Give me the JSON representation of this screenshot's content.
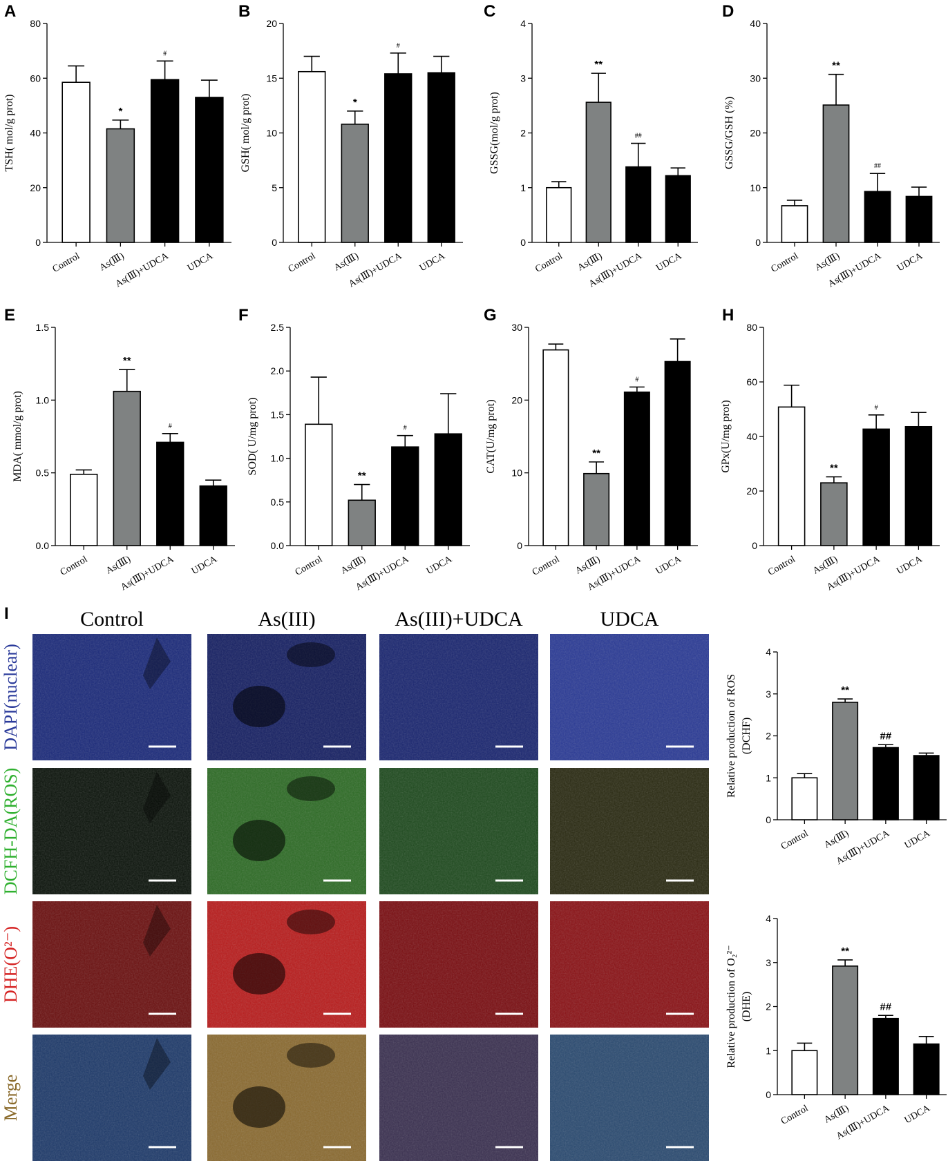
{
  "colors": {
    "control": "#ffffff",
    "arsenic": "#7f8282",
    "combo": "#000000",
    "udca": "#000000",
    "dapi": "#2a3a9a",
    "dcfh": "#2fb02f",
    "dhe": "#d52222",
    "merge": "#8a6a2a"
  },
  "chart_data": [
    {
      "id": "A",
      "type": "bar",
      "ylabel": "TSH( mol/g prot)",
      "ylim": [
        0,
        80
      ],
      "yticks": [
        0,
        20,
        40,
        60,
        80
      ],
      "categories": [
        "Control",
        "As(Ⅲ)",
        "As(Ⅲ)+UDCA",
        "UDCA"
      ],
      "values": [
        58.5,
        41.5,
        59.5,
        53
      ],
      "errors": [
        6,
        3.2,
        6.8,
        6.3
      ],
      "sig": [
        "",
        "*",
        "#",
        ""
      ]
    },
    {
      "id": "B",
      "type": "bar",
      "ylabel": "GSH( mol/g prot)",
      "ylim": [
        0,
        20
      ],
      "yticks": [
        0,
        5,
        10,
        15,
        20
      ],
      "categories": [
        "Control",
        "As(Ⅲ)",
        "As(Ⅲ)+UDCA",
        "UDCA"
      ],
      "values": [
        15.6,
        10.8,
        15.4,
        15.5
      ],
      "errors": [
        1.4,
        1.2,
        1.9,
        1.5
      ],
      "sig": [
        "",
        "*",
        "#",
        ""
      ]
    },
    {
      "id": "C",
      "type": "bar",
      "ylabel": "GSSG(mol/g prot)",
      "ylim": [
        0,
        4
      ],
      "yticks": [
        0,
        1,
        2,
        3,
        4
      ],
      "categories": [
        "Control",
        "As(Ⅲ)",
        "As(Ⅲ)+UDCA",
        "UDCA"
      ],
      "values": [
        1.0,
        2.56,
        1.38,
        1.22
      ],
      "errors": [
        0.11,
        0.53,
        0.43,
        0.14
      ],
      "sig": [
        "",
        "**",
        "##",
        ""
      ]
    },
    {
      "id": "D",
      "type": "bar",
      "ylabel": "GSSG/GSH (%)",
      "ylim": [
        0,
        40
      ],
      "yticks": [
        0,
        10,
        20,
        30,
        40
      ],
      "categories": [
        "Control",
        "As(Ⅲ)",
        "As(Ⅲ)+UDCA",
        "UDCA"
      ],
      "values": [
        6.7,
        25.1,
        9.3,
        8.4
      ],
      "errors": [
        1,
        5.6,
        3.3,
        1.7
      ],
      "sig": [
        "",
        "**",
        "##",
        ""
      ]
    },
    {
      "id": "E",
      "type": "bar",
      "ylabel": "MDA( mmol/g prot)",
      "ylim": [
        0,
        1.5
      ],
      "yticks": [
        "0.0",
        "0.5",
        "1.0",
        "1.5"
      ],
      "categories": [
        "Control",
        "As(Ⅲ)",
        "As(Ⅲ)+UDCA",
        "UDCA"
      ],
      "values": [
        0.49,
        1.06,
        0.71,
        0.41
      ],
      "errors": [
        0.03,
        0.15,
        0.06,
        0.04
      ],
      "sig": [
        "",
        "**",
        "#",
        ""
      ]
    },
    {
      "id": "F",
      "type": "bar",
      "ylabel": "SOD( U/mg prot)",
      "ylim": [
        0,
        2.5
      ],
      "yticks": [
        "0.0",
        "0.5",
        "1.0",
        "1.5",
        "2.0",
        "2.5"
      ],
      "categories": [
        "Control",
        "As(Ⅲ)",
        "As(Ⅲ)+UDCA",
        "UDCA"
      ],
      "values": [
        1.39,
        0.52,
        1.13,
        1.28
      ],
      "errors": [
        0.54,
        0.18,
        0.13,
        0.46
      ],
      "sig": [
        "",
        "**",
        "#",
        ""
      ]
    },
    {
      "id": "G",
      "type": "bar",
      "ylabel": "CAT(U/mg prot)",
      "ylim": [
        0,
        30
      ],
      "yticks": [
        0,
        10,
        20,
        30
      ],
      "categories": [
        "Control",
        "As(Ⅲ)",
        "As(Ⅲ)+UDCA",
        "UDCA"
      ],
      "values": [
        26.9,
        9.9,
        21.1,
        25.3
      ],
      "errors": [
        0.8,
        1.6,
        0.7,
        3.1
      ],
      "sig": [
        "",
        "**",
        "#",
        ""
      ]
    },
    {
      "id": "H",
      "type": "bar",
      "ylabel": "GPx(U/mg prot)",
      "ylim": [
        0,
        80
      ],
      "yticks": [
        0,
        20,
        40,
        60,
        80
      ],
      "categories": [
        "Control",
        "As(Ⅲ)",
        "As(Ⅲ)+UDCA",
        "UDCA"
      ],
      "values": [
        50.8,
        23,
        42.7,
        43.6
      ],
      "errors": [
        8,
        2.2,
        5.2,
        5.2
      ],
      "sig": [
        "",
        "**",
        "#",
        ""
      ]
    },
    {
      "id": "I1",
      "type": "bar",
      "ylabel": [
        "Relative production of ROS",
        "(DCHF)"
      ],
      "ylim": [
        0,
        4
      ],
      "yticks": [
        0,
        1,
        2,
        3,
        4
      ],
      "categories": [
        "Control",
        "As(Ⅲ)",
        "As(Ⅲ)+UDCA",
        "UDCA"
      ],
      "values": [
        1.0,
        2.8,
        1.72,
        1.53
      ],
      "errors": [
        0.1,
        0.08,
        0.07,
        0.06
      ],
      "sig": [
        "",
        "**",
        "##",
        ""
      ]
    },
    {
      "id": "I2",
      "type": "bar",
      "ylabel": [
        "Relative production of O₂²⁻",
        "(DHE)"
      ],
      "ylim": [
        0,
        4
      ],
      "yticks": [
        0,
        1,
        2,
        3,
        4
      ],
      "categories": [
        "Control",
        "As(Ⅲ)",
        "As(Ⅲ)+UDCA",
        "UDCA"
      ],
      "values": [
        1.0,
        2.92,
        1.73,
        1.15
      ],
      "errors": [
        0.17,
        0.14,
        0.07,
        0.17
      ],
      "sig": [
        "",
        "**",
        "##",
        ""
      ]
    }
  ],
  "panel_letters": [
    "A",
    "B",
    "C",
    "D",
    "E",
    "F",
    "G",
    "H",
    "I"
  ],
  "micrograph": {
    "columns": [
      "Control",
      "As(III)",
      "As(III)+UDCA",
      "UDCA"
    ],
    "rows": [
      "DAPI(nuclear)",
      "DCFH-DA(ROS)",
      "DHE(O²⁻)",
      "Merge"
    ],
    "row_colors": [
      "#2a3a9a",
      "#2fb02f",
      "#d52222",
      "#8a6a2a"
    ]
  }
}
